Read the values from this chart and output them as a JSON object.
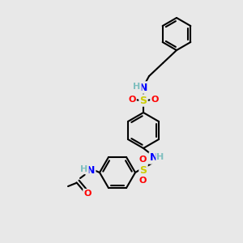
{
  "bg_color": "#e8e8e8",
  "bond_color": "#000000",
  "atom_colors": {
    "N": "#0000ff",
    "O": "#ff0000",
    "S": "#cccc00",
    "H": "#7fbfbf",
    "C": "#000000"
  },
  "figsize": [
    3.0,
    3.0
  ],
  "dpi": 100
}
